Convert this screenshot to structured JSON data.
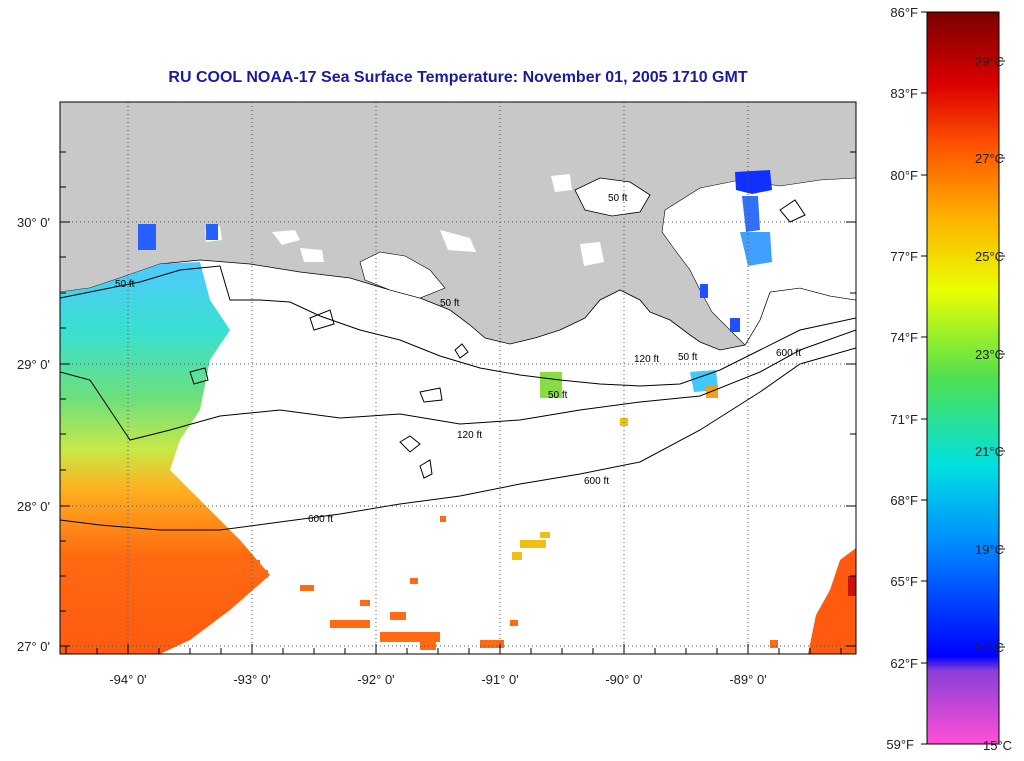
{
  "title": "RU COOL  NOAA-17  Sea Surface Temperature:  November 01, 2005 1710 GMT",
  "map": {
    "lon_ticks": [
      "-94° 0'",
      "-93° 0'",
      "-92° 0'",
      "-91° 0'",
      "-90° 0'",
      "-89° 0'"
    ],
    "lat_ticks": [
      "30° 0'",
      "29° 0'",
      "28° 0'",
      "27° 0'"
    ],
    "land_color": "#c8c8c8",
    "ocean_nodata_color": "#ffffff",
    "grid": "dotted",
    "contour_labels": {
      "c50": "50 ft",
      "c120": "120 ft",
      "c600": "600 ft"
    }
  },
  "colorbar": {
    "fahrenheit": [
      "86°F",
      "83°F",
      "80°F",
      "77°F",
      "74°F",
      "71°F",
      "68°F",
      "65°F",
      "62°F",
      "59°F"
    ],
    "celsius": [
      "29°C",
      "27°C",
      "25°C",
      "23°C",
      "21°C",
      "19°C",
      "17°C",
      "15°C"
    ],
    "colors": [
      "#ff4fd6",
      "#8b3fd8",
      "#0000ff",
      "#0090ff",
      "#00e0e0",
      "#50e050",
      "#e8ff00",
      "#ffb000",
      "#ff5000",
      "#dd0000",
      "#7a0000"
    ]
  }
}
